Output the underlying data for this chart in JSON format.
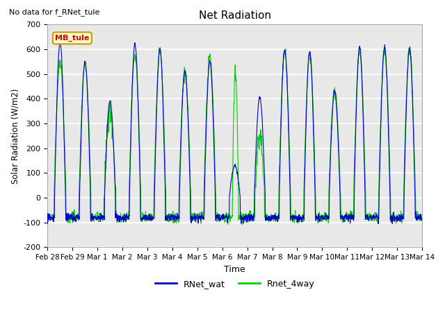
{
  "title": "Net Radiation",
  "top_left_text": "No data for f_RNet_tule",
  "ylabel": "Solar Radiation (W/m2)",
  "xlabel": "Time",
  "ylim": [
    -200,
    700
  ],
  "yticks": [
    -200,
    -100,
    0,
    100,
    200,
    300,
    400,
    500,
    600,
    700
  ],
  "xtick_labels": [
    "Feb 28",
    "Feb 29",
    "Mar 1",
    "Mar 2",
    "Mar 3",
    "Mar 4",
    "Mar 5",
    "Mar 6",
    "Mar 7",
    "Mar 8",
    "Mar 9",
    "Mar 10",
    "Mar 11",
    "Mar 12",
    "Mar 13",
    "Mar 14"
  ],
  "legend_entries": [
    "RNet_wat",
    "Rnet_4way"
  ],
  "legend_colors": [
    "#0000cc",
    "#00cc00"
  ],
  "line_blue": "#0000cc",
  "line_green": "#00cc00",
  "background_color": "#ffffff",
  "plot_bg_color": "#e8e8e8",
  "grid_color": "#ffffff",
  "annotation_text": "MB_tule",
  "annotation_color": "#cc0000",
  "annotation_bg": "#ffffcc",
  "annotation_border": "#cc9900",
  "n_days": 15,
  "blue_peaks": [
    630,
    550,
    390,
    620,
    600,
    510,
    550,
    130,
    405,
    600,
    590,
    430,
    610,
    610,
    600
  ],
  "green_peaks": [
    550,
    545,
    355,
    575,
    590,
    505,
    570,
    505,
    245,
    595,
    580,
    435,
    595,
    590,
    598
  ],
  "night_blue": -80,
  "night_green": -80,
  "noise_blue": 4,
  "noise_green": 12,
  "day_start": 0.28,
  "day_end": 0.72,
  "figsize": [
    6.4,
    4.8
  ],
  "dpi": 100
}
